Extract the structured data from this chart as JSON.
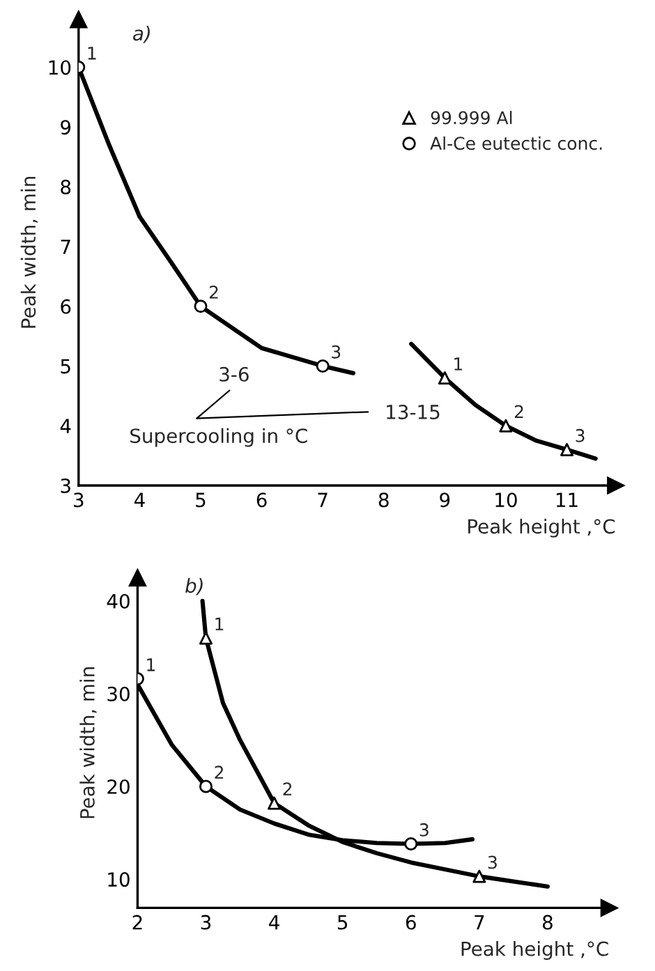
{
  "chart_data": [
    {
      "type": "scatter",
      "title": "a)",
      "xlabel": "Peak height ,°C",
      "ylabel": "Peak width, min",
      "xlim": [
        3,
        11.8
      ],
      "ylim": [
        3,
        10.8
      ],
      "xticks": [
        3,
        4,
        5,
        6,
        7,
        8,
        9,
        10,
        11
      ],
      "yticks": [
        3,
        4,
        5,
        6,
        7,
        8,
        9,
        10
      ],
      "grid": false,
      "legend": "top right",
      "series": [
        {
          "name": "99.999 Al",
          "marker": "triangle",
          "color": "#000000",
          "x": [
            9,
            10,
            11
          ],
          "values": [
            4.8,
            4.0,
            3.6
          ]
        },
        {
          "name": "Al-Ce eutectic conc.",
          "marker": "circle",
          "color": "#000000",
          "x": [
            3,
            5,
            7
          ],
          "values": [
            10,
            6,
            5
          ]
        },
        {
          "type": "line",
          "color": "#000000",
          "x": [
            8.45,
            9,
            9.5,
            10,
            10.5,
            11,
            11.47
          ],
          "values": [
            5.37,
            4.8,
            4.35,
            4.0,
            3.75,
            3.6,
            3.45
          ]
        },
        {
          "type": "line",
          "color": "#000000",
          "x": [
            3,
            3.5,
            4,
            4.5,
            5,
            6,
            7,
            7.5
          ],
          "values": [
            10,
            8.7,
            7.5,
            6.76,
            6,
            5.3,
            5,
            4.88
          ]
        }
      ],
      "annotations": [
        {
          "text": "1",
          "x": 3,
          "y": 10
        },
        {
          "text": "2",
          "x": 5,
          "y": 6
        },
        {
          "text": "3",
          "x": 7,
          "y": 5
        },
        {
          "text": "1",
          "x": 9,
          "y": 4.8
        },
        {
          "text": "2",
          "x": 10,
          "y": 4.0
        },
        {
          "text": "3",
          "x": 11,
          "y": 3.6
        },
        "3-6",
        "13-15",
        "Supercooling in °C"
      ]
    },
    {
      "type": "scatter",
      "title": "b)",
      "xlabel": "Peak height ,°C",
      "ylabel": "Peak width, min",
      "xlim": [
        2,
        8.9
      ],
      "ylim": [
        6.9,
        42.5
      ],
      "xticks": [
        2,
        3,
        4,
        5,
        6,
        7,
        8
      ],
      "yticks": [
        10,
        20,
        30,
        40
      ],
      "grid": false,
      "series": [
        {
          "marker": "triangle",
          "color": "#000000",
          "x": [
            3,
            4,
            7
          ],
          "values": [
            36,
            18.2,
            10.3
          ]
        },
        {
          "marker": "circle",
          "color": "#000000",
          "x": [
            2,
            3,
            6
          ],
          "values": [
            31.6,
            20,
            13.8
          ]
        },
        {
          "type": "line",
          "color": "#000000",
          "x": [
            2.95,
            3,
            3.25,
            3.5,
            4,
            4.5,
            5,
            5.5,
            6,
            7,
            8
          ],
          "values": [
            40,
            36,
            29,
            25,
            18.2,
            15.8,
            14,
            12.8,
            11.8,
            10.3,
            9.2
          ]
        },
        {
          "type": "line",
          "color": "#000000",
          "x": [
            2,
            2.5,
            3,
            3.5,
            4,
            4.5,
            5,
            5.5,
            6,
            6.5,
            6.9
          ],
          "values": [
            31,
            24.5,
            20,
            17.5,
            16,
            14.8,
            14.2,
            13.9,
            13.8,
            13.9,
            14.3
          ]
        }
      ],
      "annotations": [
        {
          "text": "1",
          "x": 3,
          "y": 36
        },
        {
          "text": "2",
          "x": 4,
          "y": 18.2
        },
        {
          "text": "3",
          "x": 7,
          "y": 10.3
        },
        {
          "text": "1",
          "x": 2,
          "y": 31.6
        },
        {
          "text": "2",
          "x": 3,
          "y": 20
        },
        {
          "text": "3",
          "x": 6,
          "y": 13.8
        }
      ]
    }
  ]
}
